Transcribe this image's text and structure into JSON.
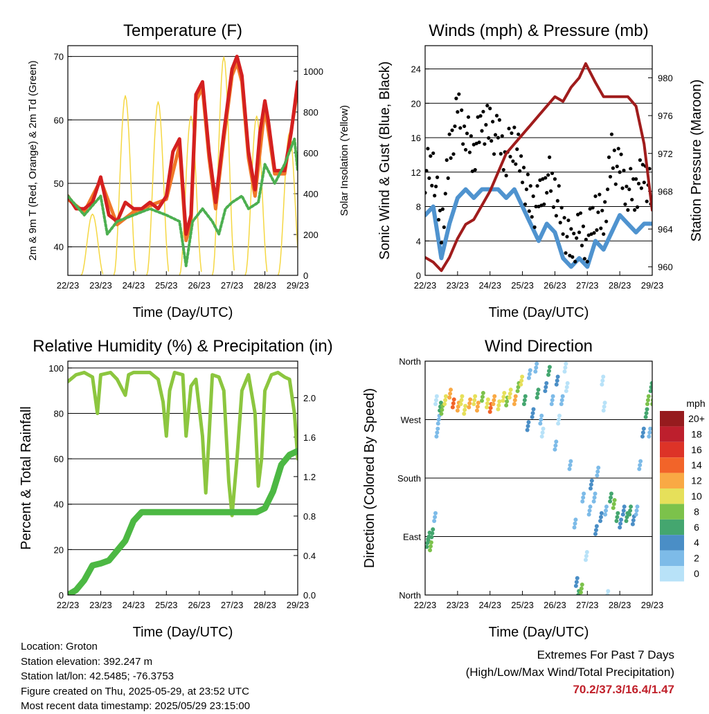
{
  "chart_data": [
    {
      "type": "line",
      "title": "Temperature (F)",
      "xlabel": "Time (Day/UTC)",
      "ylabel": "2m & 9m T (Red, Orange) & 2m Td (Green)",
      "ylabel_right": "Solar Insolation (Yellow)",
      "xticks": [
        "22/23",
        "23/23",
        "24/23",
        "25/23",
        "26/23",
        "27/23",
        "28/23",
        "29/23"
      ],
      "xlim": [
        0,
        7
      ],
      "ylim": [
        35.5,
        71.7
      ],
      "yticks": [
        40,
        50,
        60,
        70
      ],
      "ylim_right": [
        0,
        1125
      ],
      "yticks_right": [
        0,
        200,
        400,
        600,
        800,
        1000
      ],
      "grid": true,
      "series": [
        {
          "name": "2m T",
          "color": "#d42020",
          "axis": "left",
          "x": [
            0,
            0.25,
            0.5,
            0.75,
            1.0,
            1.25,
            1.5,
            1.75,
            2.0,
            2.25,
            2.5,
            2.75,
            3.0,
            3.2,
            3.4,
            3.6,
            3.75,
            3.9,
            4.1,
            4.3,
            4.5,
            4.75,
            5.0,
            5.15,
            5.3,
            5.5,
            5.7,
            5.85,
            6.0,
            6.1,
            6.3,
            6.6,
            6.8,
            7.0
          ],
          "y": [
            48,
            46,
            46,
            47,
            51,
            45,
            44,
            47,
            46,
            46,
            47,
            46,
            48,
            55,
            57,
            42,
            45,
            64,
            66,
            55,
            47,
            58,
            68,
            70,
            67,
            55,
            49,
            58,
            63,
            60,
            52,
            52,
            58,
            66
          ]
        },
        {
          "name": "9m T",
          "color": "#f07828",
          "axis": "left",
          "x": [
            0,
            0.5,
            1.0,
            1.5,
            2.0,
            2.5,
            3.0,
            3.4,
            3.6,
            3.75,
            3.9,
            4.1,
            4.3,
            4.5,
            4.75,
            5.0,
            5.15,
            5.3,
            5.5,
            5.7,
            6.0,
            6.3,
            6.6,
            7.0
          ],
          "y": [
            47.5,
            45.5,
            50.5,
            43.5,
            45.5,
            46.5,
            47.5,
            56,
            41,
            44,
            63,
            65,
            54,
            46,
            57,
            67,
            69,
            66,
            54,
            48,
            62,
            51.5,
            51.5,
            65
          ]
        },
        {
          "name": "2m Td",
          "color": "#4caf50",
          "axis": "left",
          "x": [
            0,
            0.5,
            1.0,
            1.2,
            1.5,
            2.0,
            2.5,
            3.0,
            3.4,
            3.6,
            3.8,
            4.1,
            4.4,
            4.6,
            4.8,
            5.0,
            5.3,
            5.5,
            5.8,
            6.0,
            6.3,
            6.6,
            6.9,
            7.0
          ],
          "y": [
            48,
            45,
            48,
            42,
            44,
            45,
            46,
            45,
            44,
            37,
            44,
            46,
            44,
            42,
            46,
            47,
            48,
            46,
            47,
            53,
            50,
            53,
            57,
            52
          ]
        },
        {
          "name": "Solar Insolation",
          "color": "#f5d742",
          "axis": "right",
          "peaks_x": [
            0.75,
            1.75,
            2.75,
            3.75,
            4.75,
            5.75,
            6.75
          ],
          "peaks_y": [
            300,
            880,
            850,
            780,
            1070,
            780,
            700
          ]
        }
      ]
    },
    {
      "type": "line",
      "title": "Winds (mph) & Pressure (mb)",
      "xlabel": "Time (Day/UTC)",
      "ylabel": "Sonic Wind & Gust (Blue, Black)",
      "ylabel_right": "Station Pressure (Maroon)",
      "xticks": [
        "22/23",
        "23/23",
        "24/23",
        "25/23",
        "26/23",
        "27/23",
        "28/23",
        "29/23"
      ],
      "xlim": [
        0,
        7
      ],
      "ylim": [
        0,
        26.7
      ],
      "yticks": [
        0,
        4,
        8,
        12,
        16,
        20,
        24
      ],
      "ylim_right": [
        959.1,
        983.4
      ],
      "yticks_right": [
        960,
        964,
        968,
        972,
        976,
        980
      ],
      "grid": true,
      "x": [
        0,
        0.25,
        0.5,
        0.75,
        1.0,
        1.25,
        1.5,
        1.75,
        2.0,
        2.25,
        2.5,
        2.75,
        3.0,
        3.25,
        3.5,
        3.75,
        4.0,
        4.25,
        4.5,
        4.75,
        5.0,
        5.25,
        5.5,
        5.75,
        6.0,
        6.25,
        6.5,
        6.75,
        7.0
      ],
      "series": [
        {
          "name": "Sonic Wind",
          "color": "#4f93cf",
          "y": [
            7,
            8,
            2,
            6,
            9,
            10,
            9,
            10,
            10,
            10,
            9,
            10,
            8,
            6,
            4,
            6,
            5,
            2,
            1,
            2,
            1,
            4,
            3,
            5,
            7,
            6,
            5,
            6,
            6
          ]
        },
        {
          "name": "Gust",
          "color": "#000000",
          "y": [
            12,
            13,
            5,
            14,
            19,
            17,
            14,
            18,
            17,
            16,
            14,
            16,
            12,
            8,
            8,
            12,
            10,
            6,
            3,
            5,
            4,
            8,
            6,
            14,
            12,
            10,
            10,
            12,
            9
          ]
        },
        {
          "name": "Station Pressure",
          "color": "#a01c1c",
          "axis": "right",
          "x": [
            0,
            0.25,
            0.5,
            0.75,
            1.0,
            1.25,
            1.5,
            1.75,
            2.0,
            2.25,
            2.5,
            2.75,
            3.0,
            3.25,
            3.5,
            3.75,
            4.0,
            4.25,
            4.5,
            4.75,
            4.95,
            5.25,
            5.5,
            6.0,
            6.25,
            6.5,
            6.75,
            7.0
          ],
          "y": [
            961,
            960.5,
            959.6,
            961,
            963,
            964.5,
            965,
            966.5,
            968,
            970,
            972,
            973,
            974,
            975,
            976,
            977,
            978,
            977.5,
            979,
            980,
            981.5,
            979.5,
            978,
            978,
            978,
            977,
            973,
            966
          ]
        }
      ]
    },
    {
      "type": "line",
      "title": "Relative Humidity (%) & Precipitation (in)",
      "xlabel": "Time (Day/UTC)",
      "ylabel": "Percent & Total Rainfall",
      "xticks": [
        "22/23",
        "23/23",
        "24/23",
        "25/23",
        "26/23",
        "27/23",
        "28/23",
        "29/23"
      ],
      "xlim": [
        0,
        7
      ],
      "ylim": [
        0,
        103
      ],
      "yticks": [
        0,
        20,
        40,
        60,
        80,
        100
      ],
      "ylim_right": [
        0,
        2.37
      ],
      "yticks_right": [
        "0.0",
        "0.4",
        "0.8",
        "1.2",
        "1.6",
        "2.0"
      ],
      "grid": true,
      "series": [
        {
          "name": "Relative Humidity",
          "color": "#8cc63f",
          "x": [
            0,
            0.25,
            0.5,
            0.75,
            0.9,
            1.0,
            1.3,
            1.5,
            1.75,
            1.85,
            2.0,
            2.5,
            2.75,
            2.9,
            3.0,
            3.1,
            3.25,
            3.5,
            3.6,
            3.75,
            3.9,
            4.1,
            4.2,
            4.3,
            4.4,
            4.6,
            4.75,
            4.9,
            5.0,
            5.15,
            5.3,
            5.5,
            5.7,
            5.8,
            5.9,
            6.0,
            6.2,
            6.4,
            6.6,
            6.75,
            6.9,
            7.0
          ],
          "y": [
            94,
            97,
            98,
            96,
            80,
            97,
            98,
            95,
            88,
            97,
            98,
            98,
            95,
            85,
            70,
            90,
            98,
            97,
            70,
            92,
            95,
            70,
            45,
            70,
            97,
            96,
            90,
            50,
            35,
            60,
            90,
            97,
            80,
            48,
            60,
            90,
            97,
            98,
            96,
            95,
            80,
            60
          ]
        },
        {
          "name": "Total Precipitation",
          "color": "#4cb843",
          "axis": "right",
          "x": [
            0,
            0.25,
            0.5,
            0.75,
            1.0,
            1.25,
            1.5,
            1.75,
            2.0,
            2.25,
            2.5,
            3.0,
            4.0,
            5.0,
            5.75,
            6.0,
            6.25,
            6.5,
            6.75,
            7.0
          ],
          "y": [
            0,
            0.05,
            0.15,
            0.3,
            0.32,
            0.35,
            0.45,
            0.55,
            0.75,
            0.84,
            0.84,
            0.84,
            0.84,
            0.84,
            0.84,
            0.88,
            1.05,
            1.32,
            1.42,
            1.46
          ]
        }
      ]
    },
    {
      "type": "scatter",
      "title": "Wind Direction",
      "xlabel": "Time (Day/UTC)",
      "ylabel": "Direction (Colored By Speed)",
      "xticks": [
        "22/23",
        "23/23",
        "24/23",
        "25/23",
        "26/23",
        "27/23",
        "28/23",
        "29/23"
      ],
      "xlim": [
        0,
        7
      ],
      "ylim": [
        0,
        360
      ],
      "ytick_values": [
        0,
        90,
        180,
        270,
        360
      ],
      "yticks": [
        "North",
        "East",
        "South",
        "West",
        "North"
      ],
      "grid": true,
      "legend": {
        "title": "mph",
        "position": "right",
        "labels": [
          "20+",
          "18",
          "16",
          "14",
          "12",
          "10",
          "8",
          "6",
          "4",
          "2",
          "0"
        ],
        "colors": [
          "#961b1e",
          "#bd1f2d",
          "#dd3327",
          "#f26429",
          "#f9a944",
          "#e6e05a",
          "#7cc24b",
          "#44a66f",
          "#4a8ec6",
          "#7dbbe8",
          "#b8e2f8"
        ]
      },
      "points": [
        [
          0.05,
          80,
          6
        ],
        [
          0.1,
          90,
          7
        ],
        [
          0.15,
          75,
          8
        ],
        [
          0.2,
          95,
          6
        ],
        [
          0.28,
          120,
          2
        ],
        [
          0.32,
          300,
          1
        ],
        [
          0.35,
          250,
          2
        ],
        [
          0.4,
          270,
          3
        ],
        [
          0.45,
          290,
          6
        ],
        [
          0.5,
          285,
          8
        ],
        [
          0.6,
          300,
          10
        ],
        [
          0.75,
          310,
          12
        ],
        [
          0.85,
          295,
          14
        ],
        [
          1.0,
          290,
          12
        ],
        [
          1.1,
          300,
          11
        ],
        [
          1.2,
          285,
          10
        ],
        [
          1.35,
          295,
          12
        ],
        [
          1.5,
          300,
          10
        ],
        [
          1.6,
          290,
          13
        ],
        [
          1.75,
          305,
          9
        ],
        [
          1.9,
          295,
          11
        ],
        [
          2.0,
          288,
          14
        ],
        [
          2.1,
          300,
          12
        ],
        [
          2.25,
          292,
          10
        ],
        [
          2.4,
          305,
          11
        ],
        [
          2.5,
          298,
          9
        ],
        [
          2.6,
          310,
          10
        ],
        [
          2.75,
          300,
          12
        ],
        [
          2.85,
          320,
          9
        ],
        [
          2.95,
          330,
          10
        ],
        [
          3.05,
          300,
          6
        ],
        [
          3.15,
          260,
          4
        ],
        [
          3.2,
          340,
          3
        ],
        [
          3.3,
          280,
          5
        ],
        [
          3.4,
          350,
          2
        ],
        [
          3.45,
          310,
          6
        ],
        [
          3.55,
          270,
          3
        ],
        [
          3.6,
          250,
          1
        ],
        [
          3.7,
          320,
          4
        ],
        [
          3.8,
          345,
          7
        ],
        [
          3.9,
          300,
          2
        ],
        [
          4.0,
          230,
          3
        ],
        [
          4.05,
          330,
          5
        ],
        [
          4.1,
          270,
          1
        ],
        [
          4.2,
          300,
          2
        ],
        [
          4.3,
          350,
          1
        ],
        [
          4.35,
          320,
          1
        ],
        [
          4.45,
          200,
          2
        ],
        [
          4.6,
          110,
          3
        ],
        [
          4.65,
          20,
          4
        ],
        [
          4.7,
          0,
          6
        ],
        [
          4.8,
          10,
          8
        ],
        [
          4.85,
          150,
          2
        ],
        [
          4.95,
          60,
          1
        ],
        [
          5.05,
          130,
          2
        ],
        [
          5.1,
          170,
          4
        ],
        [
          5.2,
          150,
          3
        ],
        [
          5.25,
          100,
          5
        ],
        [
          5.3,
          190,
          2
        ],
        [
          5.4,
          120,
          4
        ],
        [
          5.45,
          330,
          1
        ],
        [
          5.5,
          290,
          0
        ],
        [
          5.55,
          130,
          3
        ],
        [
          5.6,
          0,
          1
        ],
        [
          5.7,
          150,
          6
        ],
        [
          5.8,
          140,
          8
        ],
        [
          5.9,
          120,
          6
        ],
        [
          6.0,
          110,
          4
        ],
        [
          6.1,
          130,
          5
        ],
        [
          6.2,
          120,
          6
        ],
        [
          6.3,
          130,
          7
        ],
        [
          6.4,
          115,
          5
        ],
        [
          6.5,
          130,
          3
        ],
        [
          6.6,
          200,
          2
        ],
        [
          6.7,
          250,
          4
        ],
        [
          6.8,
          280,
          6
        ],
        [
          6.85,
          300,
          8
        ],
        [
          6.9,
          250,
          3
        ],
        [
          6.95,
          320,
          7
        ],
        [
          7.0,
          300,
          8
        ]
      ]
    }
  ],
  "footer": {
    "location": "Location: Groton",
    "elevation": "Station elevation: 392.247 m",
    "latlon": "Station lat/lon: 42.5485; -76.3753",
    "created": "Figure created on Thu, 2025-05-29, at 23:52 UTC",
    "recent": "Most recent data timestamp: 2025/05/29 23:15:00"
  },
  "extremes": {
    "title": "Extremes For Past 7 Days",
    "subtitle": "(High/Low/Max Wind/Total Precipitation)",
    "values": "70.2/37.3/16.4/1.47"
  }
}
